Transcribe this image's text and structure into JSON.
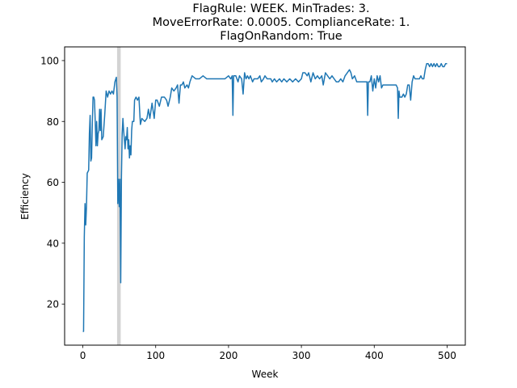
{
  "chart_data": {
    "type": "line",
    "title_lines": [
      "FlagRule: WEEK. MinTrades: 3.",
      "MoveErrorRate: 0.0005. ComplianceRate: 1.",
      "FlagOnRandom: True"
    ],
    "xlabel": "Week",
    "ylabel": "Efficiency",
    "xlim": [
      -25,
      525
    ],
    "ylim": [
      6.5,
      104.5
    ],
    "xticks": [
      0,
      100,
      200,
      300,
      400,
      500
    ],
    "yticks": [
      20,
      40,
      60,
      80,
      100
    ],
    "grid": false,
    "line_color": "#1f77b4",
    "highlight_band": {
      "x_start": 47,
      "x_end": 52,
      "color": "#d3d3d3"
    },
    "series": [
      {
        "points": [
          [
            0,
            11
          ],
          [
            1,
            11
          ],
          [
            2,
            42
          ],
          [
            3,
            53
          ],
          [
            4,
            46
          ],
          [
            5,
            52
          ],
          [
            6,
            63
          ],
          [
            8,
            64
          ],
          [
            9,
            76
          ],
          [
            10,
            82
          ],
          [
            11,
            67
          ],
          [
            12,
            68
          ],
          [
            13,
            79
          ],
          [
            14,
            88
          ],
          [
            15,
            88
          ],
          [
            16,
            87
          ],
          [
            17,
            80
          ],
          [
            18,
            72
          ],
          [
            19,
            80
          ],
          [
            20,
            72
          ],
          [
            21,
            76
          ],
          [
            22,
            77
          ],
          [
            23,
            84
          ],
          [
            24,
            77
          ],
          [
            25,
            84
          ],
          [
            26,
            74
          ],
          [
            28,
            75
          ],
          [
            30,
            82
          ],
          [
            32,
            90
          ],
          [
            34,
            88
          ],
          [
            36,
            90
          ],
          [
            38,
            89
          ],
          [
            40,
            90
          ],
          [
            42,
            89
          ],
          [
            44,
            93
          ],
          [
            46,
            94.5
          ],
          [
            47,
            88
          ],
          [
            48,
            53
          ],
          [
            49,
            61
          ],
          [
            50,
            52
          ],
          [
            51,
            61
          ],
          [
            52,
            27
          ],
          [
            53,
            62
          ],
          [
            54,
            76
          ],
          [
            55,
            81
          ],
          [
            56,
            77
          ],
          [
            57,
            74
          ],
          [
            58,
            71
          ],
          [
            59,
            75
          ],
          [
            60,
            74
          ],
          [
            61,
            78
          ],
          [
            62,
            71
          ],
          [
            63,
            74
          ],
          [
            64,
            68
          ],
          [
            65,
            72
          ],
          [
            66,
            69
          ],
          [
            67,
            77
          ],
          [
            68,
            80
          ],
          [
            69,
            80
          ],
          [
            70,
            80
          ],
          [
            71,
            87
          ],
          [
            73,
            88
          ],
          [
            75,
            87
          ],
          [
            77,
            88
          ],
          [
            79,
            79
          ],
          [
            81,
            81
          ],
          [
            85,
            80
          ],
          [
            88,
            81
          ],
          [
            90,
            84
          ],
          [
            92,
            81
          ],
          [
            95,
            86
          ],
          [
            98,
            81
          ],
          [
            100,
            87
          ],
          [
            102,
            87
          ],
          [
            105,
            85
          ],
          [
            108,
            88
          ],
          [
            112,
            88
          ],
          [
            115,
            87
          ],
          [
            117,
            85
          ],
          [
            120,
            88
          ],
          [
            122,
            91
          ],
          [
            125,
            90
          ],
          [
            128,
            91
          ],
          [
            130,
            92
          ],
          [
            132,
            86
          ],
          [
            134,
            92
          ],
          [
            136,
            92
          ],
          [
            138,
            93
          ],
          [
            140,
            91
          ],
          [
            143,
            92
          ],
          [
            145,
            91
          ],
          [
            147,
            93
          ],
          [
            150,
            95
          ],
          [
            155,
            94
          ],
          [
            160,
            94
          ],
          [
            165,
            95
          ],
          [
            170,
            94
          ],
          [
            175,
            94
          ],
          [
            180,
            94
          ],
          [
            185,
            94
          ],
          [
            190,
            94
          ],
          [
            195,
            94
          ],
          [
            200,
            95
          ],
          [
            203,
            94
          ],
          [
            205,
            95
          ],
          [
            206,
            82
          ],
          [
            207,
            95
          ],
          [
            210,
            95
          ],
          [
            213,
            93
          ],
          [
            215,
            95
          ],
          [
            218,
            94
          ],
          [
            220,
            89
          ],
          [
            222,
            96
          ],
          [
            224,
            94
          ],
          [
            226,
            95
          ],
          [
            228,
            94
          ],
          [
            230,
            95
          ],
          [
            233,
            93
          ],
          [
            235,
            94
          ],
          [
            238,
            94
          ],
          [
            240,
            94
          ],
          [
            243,
            95
          ],
          [
            245,
            93
          ],
          [
            248,
            94
          ],
          [
            250,
            95
          ],
          [
            253,
            94
          ],
          [
            255,
            94
          ],
          [
            258,
            94
          ],
          [
            260,
            93
          ],
          [
            263,
            94
          ],
          [
            266,
            93
          ],
          [
            270,
            94
          ],
          [
            273,
            93
          ],
          [
            276,
            94
          ],
          [
            280,
            93
          ],
          [
            284,
            94
          ],
          [
            288,
            93
          ],
          [
            292,
            94
          ],
          [
            296,
            93
          ],
          [
            300,
            94
          ],
          [
            302,
            96
          ],
          [
            305,
            96
          ],
          [
            308,
            95
          ],
          [
            310,
            96
          ],
          [
            313,
            93
          ],
          [
            316,
            96
          ],
          [
            319,
            94
          ],
          [
            322,
            95
          ],
          [
            325,
            94
          ],
          [
            328,
            95
          ],
          [
            330,
            92
          ],
          [
            333,
            96
          ],
          [
            336,
            95
          ],
          [
            339,
            94
          ],
          [
            342,
            95
          ],
          [
            345,
            94
          ],
          [
            348,
            93
          ],
          [
            351,
            93
          ],
          [
            354,
            94
          ],
          [
            357,
            93
          ],
          [
            360,
            95
          ],
          [
            363,
            96
          ],
          [
            366,
            97
          ],
          [
            368,
            96
          ],
          [
            370,
            94
          ],
          [
            373,
            95
          ],
          [
            376,
            93
          ],
          [
            380,
            93
          ],
          [
            383,
            93
          ],
          [
            386,
            93
          ],
          [
            390,
            93
          ],
          [
            391,
            82
          ],
          [
            392,
            93
          ],
          [
            394,
            93
          ],
          [
            396,
            95
          ],
          [
            398,
            90
          ],
          [
            400,
            94
          ],
          [
            402,
            91
          ],
          [
            404,
            95
          ],
          [
            406,
            93
          ],
          [
            408,
            95
          ],
          [
            410,
            91
          ],
          [
            412,
            92
          ],
          [
            415,
            92
          ],
          [
            418,
            92
          ],
          [
            421,
            92
          ],
          [
            424,
            92
          ],
          [
            427,
            92
          ],
          [
            430,
            92
          ],
          [
            432,
            91
          ],
          [
            433,
            81
          ],
          [
            434,
            90
          ],
          [
            435,
            88
          ],
          [
            436,
            88
          ],
          [
            438,
            88
          ],
          [
            440,
            89
          ],
          [
            442,
            88
          ],
          [
            444,
            89
          ],
          [
            446,
            92
          ],
          [
            448,
            92
          ],
          [
            450,
            87
          ],
          [
            452,
            93
          ],
          [
            454,
            95
          ],
          [
            456,
            94
          ],
          [
            458,
            94
          ],
          [
            460,
            94
          ],
          [
            462,
            94
          ],
          [
            464,
            95
          ],
          [
            466,
            94
          ],
          [
            468,
            94
          ],
          [
            470,
            97
          ],
          [
            472,
            99
          ],
          [
            474,
            99
          ],
          [
            476,
            98
          ],
          [
            478,
            99
          ],
          [
            480,
            98
          ],
          [
            482,
            99
          ],
          [
            484,
            98
          ],
          [
            486,
            99
          ],
          [
            488,
            98
          ],
          [
            490,
            98
          ],
          [
            492,
            99
          ],
          [
            494,
            98
          ],
          [
            496,
            98
          ],
          [
            498,
            99
          ],
          [
            500,
            99
          ]
        ]
      }
    ]
  }
}
